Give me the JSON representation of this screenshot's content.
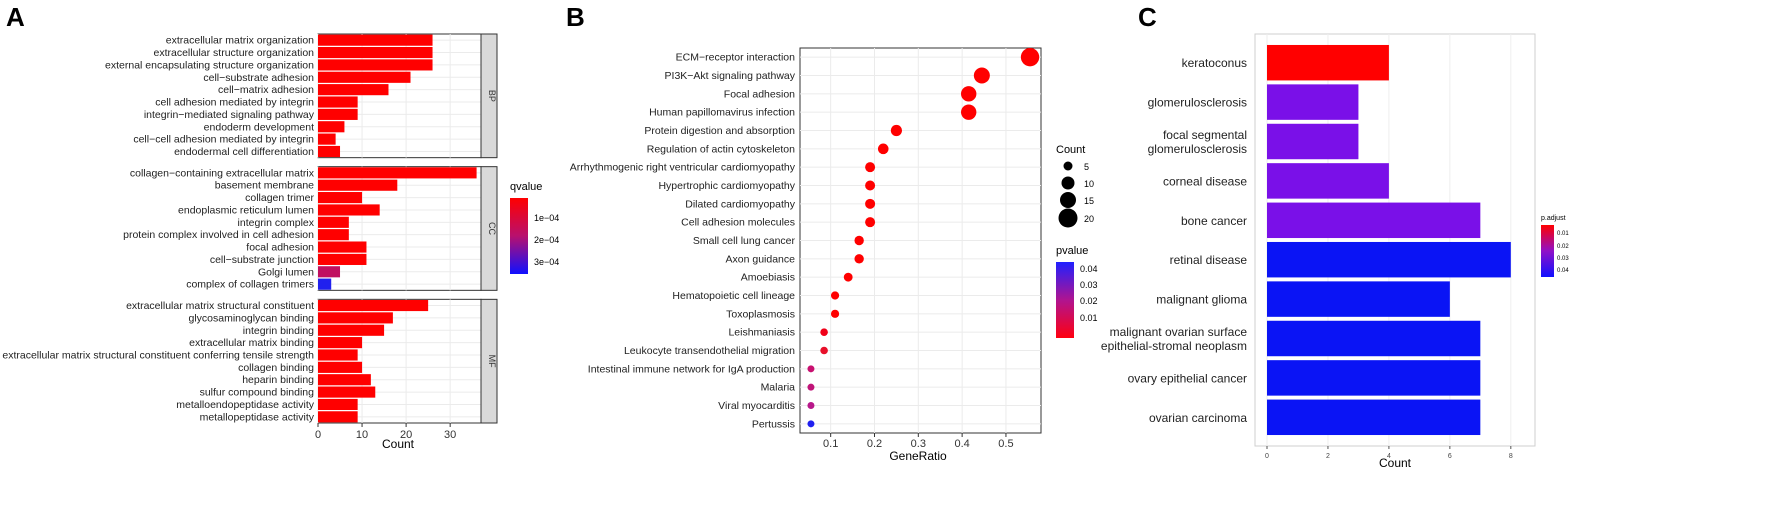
{
  "panels": {
    "A": {
      "letter": "A",
      "xlabel": "Count",
      "xticks": [
        0,
        10,
        20,
        30
      ],
      "xlim": [
        0,
        37
      ],
      "legend": {
        "title": "qvalue",
        "labels": [
          "1e−04",
          "2e−04",
          "3e−04"
        ],
        "colors": {
          "high": "#ff0000",
          "low": "#0000ff"
        }
      },
      "bar_color": "#ff0000",
      "facets": [
        {
          "name": "BP",
          "terms": [
            {
              "label": "extracellular matrix organization",
              "value": 26,
              "color": "#ff0000"
            },
            {
              "label": "extracellular structure organization",
              "value": 26,
              "color": "#ff0000"
            },
            {
              "label": "external encapsulating structure organization",
              "value": 26,
              "color": "#ff0000"
            },
            {
              "label": "cell−substrate adhesion",
              "value": 21,
              "color": "#ff0000"
            },
            {
              "label": "cell−matrix adhesion",
              "value": 16,
              "color": "#ff0000"
            },
            {
              "label": "cell adhesion mediated by integrin",
              "value": 9,
              "color": "#ff0000"
            },
            {
              "label": "integrin−mediated signaling pathway",
              "value": 9,
              "color": "#ff0000"
            },
            {
              "label": "endoderm development",
              "value": 6,
              "color": "#ff0000"
            },
            {
              "label": "cell−cell adhesion mediated by integrin",
              "value": 4,
              "color": "#ff0000"
            },
            {
              "label": "endodermal cell differentiation",
              "value": 5,
              "color": "#ff0000"
            }
          ]
        },
        {
          "name": "CC",
          "terms": [
            {
              "label": "collagen−containing extracellular matrix",
              "value": 36,
              "color": "#ff0000"
            },
            {
              "label": "basement membrane",
              "value": 18,
              "color": "#ff0000"
            },
            {
              "label": "collagen trimer",
              "value": 10,
              "color": "#ff0000"
            },
            {
              "label": "endoplasmic reticulum lumen",
              "value": 14,
              "color": "#ff0000"
            },
            {
              "label": "integrin complex",
              "value": 7,
              "color": "#ff0000"
            },
            {
              "label": "protein complex involved in cell adhesion",
              "value": 7,
              "color": "#ff0000"
            },
            {
              "label": "focal adhesion",
              "value": 11,
              "color": "#ff0000"
            },
            {
              "label": "cell−substrate junction",
              "value": 11,
              "color": "#ff0000"
            },
            {
              "label": "Golgi lumen",
              "value": 5,
              "color": "#c01060"
            },
            {
              "label": "complex of collagen trimers",
              "value": 3,
              "color": "#2020ee"
            }
          ]
        },
        {
          "name": "MF",
          "terms": [
            {
              "label": "extracellular matrix structural constituent",
              "value": 25,
              "color": "#ff0000"
            },
            {
              "label": "glycosaminoglycan binding",
              "value": 17,
              "color": "#ff0000"
            },
            {
              "label": "integrin binding",
              "value": 15,
              "color": "#ff0000"
            },
            {
              "label": "extracellular matrix binding",
              "value": 10,
              "color": "#ff0000"
            },
            {
              "label": "extracellular matrix structural constituent conferring tensile strength",
              "value": 9,
              "color": "#ff0000"
            },
            {
              "label": "collagen binding",
              "value": 10,
              "color": "#ff0000"
            },
            {
              "label": "heparin binding",
              "value": 12,
              "color": "#ff0000"
            },
            {
              "label": "sulfur compound binding",
              "value": 13,
              "color": "#ff0000"
            },
            {
              "label": "metalloendopeptidase activity",
              "value": 9,
              "color": "#ff0000"
            },
            {
              "label": "metallopeptidase activity",
              "value": 9,
              "color": "#ff0000"
            }
          ]
        }
      ]
    },
    "B": {
      "letter": "B",
      "xlabel": "GeneRatio",
      "xticks": [
        0.1,
        0.2,
        0.3,
        0.4,
        0.5
      ],
      "xlim": [
        0.03,
        0.58
      ],
      "count_legend": {
        "title": "Count",
        "values": [
          5,
          10,
          15,
          20
        ]
      },
      "p_legend": {
        "title": "pvalue",
        "labels": [
          "0.04",
          "0.03",
          "0.02",
          "0.01"
        ]
      }
    },
    "C": {
      "letter": "C",
      "xlabel": "Count",
      "xticks": [
        0,
        2,
        4,
        6,
        8
      ],
      "xlim": [
        0,
        8.4
      ],
      "legend": {
        "title": "p.adjust",
        "labels": [
          "0.01",
          "0.02",
          "0.03",
          "0.04"
        ]
      }
    }
  },
  "chart_data": [
    {
      "type": "bar",
      "orientation": "horizontal",
      "title": "A",
      "xlabel": "Count",
      "color_scale": "qvalue",
      "facets": [
        "BP",
        "CC",
        "MF"
      ],
      "note": "bar values and term labels in panels.A.facets"
    },
    {
      "type": "scatter",
      "title": "B",
      "xlabel": "GeneRatio",
      "size_variable": "Count",
      "color_variable": "pvalue",
      "points": [
        {
          "label": "ECM−receptor interaction",
          "x": 0.555,
          "count": 22,
          "color": "#ff0000"
        },
        {
          "label": "PI3K−Akt signaling pathway",
          "x": 0.445,
          "count": 18,
          "color": "#ff0000"
        },
        {
          "label": "Focal adhesion",
          "x": 0.415,
          "count": 17,
          "color": "#ff0000"
        },
        {
          "label": "Human papillomavirus infection",
          "x": 0.415,
          "count": 17,
          "color": "#ff0000"
        },
        {
          "label": "Protein digestion and absorption",
          "x": 0.25,
          "count": 10,
          "color": "#ff0000"
        },
        {
          "label": "Regulation of actin cytoskeleton",
          "x": 0.22,
          "count": 9,
          "color": "#ff0000"
        },
        {
          "label": "Arrhythmogenic right ventricular cardiomyopathy",
          "x": 0.19,
          "count": 8,
          "color": "#ff0000"
        },
        {
          "label": "Hypertrophic cardiomyopathy",
          "x": 0.19,
          "count": 8,
          "color": "#ff0000"
        },
        {
          "label": "Dilated cardiomyopathy",
          "x": 0.19,
          "count": 8,
          "color": "#ff0000"
        },
        {
          "label": "Cell adhesion molecules",
          "x": 0.19,
          "count": 8,
          "color": "#ff0000"
        },
        {
          "label": "Small cell lung cancer",
          "x": 0.165,
          "count": 7,
          "color": "#ff0000"
        },
        {
          "label": "Axon guidance",
          "x": 0.165,
          "count": 7,
          "color": "#ff0000"
        },
        {
          "label": "Amoebiasis",
          "x": 0.14,
          "count": 6,
          "color": "#ff0000"
        },
        {
          "label": "Hematopoietic cell lineage",
          "x": 0.11,
          "count": 5,
          "color": "#ff0000"
        },
        {
          "label": "Toxoplasmosis",
          "x": 0.11,
          "count": 5,
          "color": "#ff0000"
        },
        {
          "label": "Leishmaniasis",
          "x": 0.085,
          "count": 4,
          "color": "#f00018"
        },
        {
          "label": "Leukocyte transendothelial migration",
          "x": 0.085,
          "count": 4,
          "color": "#e8102a"
        },
        {
          "label": "Intestinal immune network for IgA production",
          "x": 0.055,
          "count": 3,
          "color": "#c81070"
        },
        {
          "label": "Malaria",
          "x": 0.055,
          "count": 3,
          "color": "#c01478"
        },
        {
          "label": "Viral myocarditis",
          "x": 0.055,
          "count": 3,
          "color": "#b8188a"
        },
        {
          "label": "Pertussis",
          "x": 0.055,
          "count": 3,
          "color": "#2020f0"
        }
      ]
    },
    {
      "type": "bar",
      "orientation": "horizontal",
      "title": "C",
      "xlabel": "Count",
      "color_variable": "p.adjust",
      "bars": [
        {
          "label": "keratoconus",
          "value": 4,
          "color": "#ff0000"
        },
        {
          "label": "glomerulosclerosis",
          "value": 3,
          "color": "#7a10e8"
        },
        {
          "label": "focal segmental\nglomerulosclerosis",
          "value": 3,
          "color": "#7a10e8"
        },
        {
          "label": "corneal disease",
          "value": 4,
          "color": "#7a10e8"
        },
        {
          "label": "bone cancer",
          "value": 7,
          "color": "#7a10e8"
        },
        {
          "label": "retinal disease",
          "value": 8,
          "color": "#0a14f5"
        },
        {
          "label": "malignant glioma",
          "value": 6,
          "color": "#0a14f5"
        },
        {
          "label": "malignant ovarian surface\nepithelial-stromal neoplasm",
          "value": 7,
          "color": "#0a14f5"
        },
        {
          "label": "ovary epithelial cancer",
          "value": 7,
          "color": "#0a14f5"
        },
        {
          "label": "ovarian carcinoma",
          "value": 7,
          "color": "#0a14f5"
        }
      ]
    }
  ]
}
